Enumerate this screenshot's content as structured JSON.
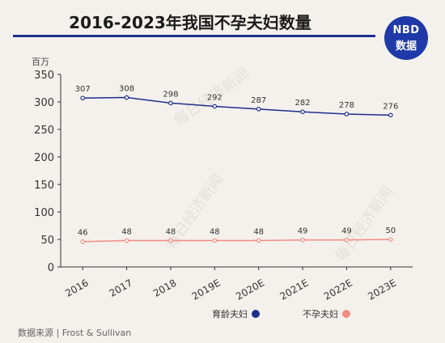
{
  "header": {
    "title": "2016-2023年我国不孕夫妇数量",
    "logo_line1": "NBD",
    "logo_line2": "数据"
  },
  "watermark": "每日经济新闻",
  "source": "数据来源 | Frost & Sullivan",
  "colors": {
    "title_rule": "#1e2f8c",
    "series_fertile": "#1e2f8c",
    "series_infertile": "#f28b82",
    "logo_bg": "#1f3aa8"
  },
  "chart_data": {
    "type": "line",
    "y_unit": "百万",
    "categories": [
      "2016",
      "2017",
      "2018",
      "2019E",
      "2020E",
      "2021E",
      "2022E",
      "2023E"
    ],
    "series": [
      {
        "name": "育龄夫妇",
        "values": [
          307,
          308,
          298,
          292,
          287,
          282,
          278,
          276
        ]
      },
      {
        "name": "不孕夫妇",
        "values": [
          46,
          48,
          48,
          48,
          48,
          49,
          49,
          50
        ]
      }
    ],
    "yticks": [
      0,
      50,
      100,
      150,
      200,
      250,
      300,
      350
    ],
    "ylim": [
      0,
      350
    ],
    "grid": false,
    "legend_position": "bottom-right"
  }
}
